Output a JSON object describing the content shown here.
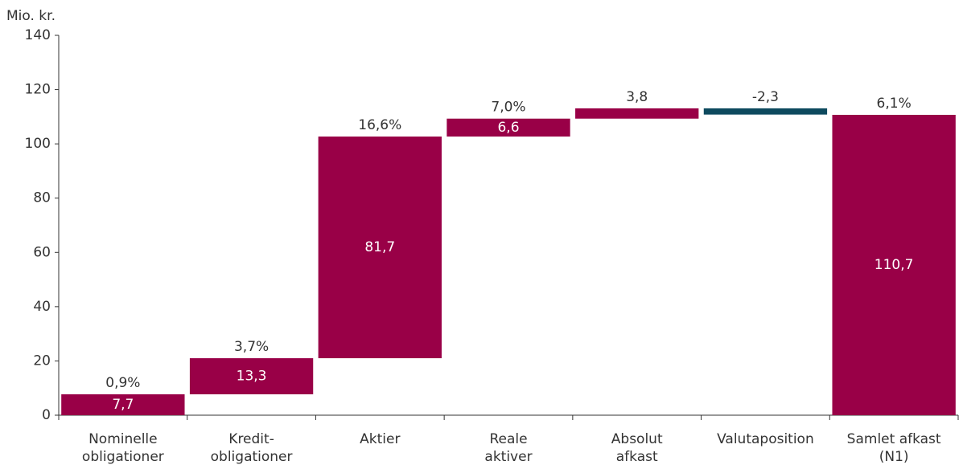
{
  "chart_data": {
    "type": "waterfall",
    "y_axis_label": "Mio. kr.",
    "categories": [
      "Nominelle\nobligationer",
      "Kredit-\nobligationer",
      "Aktier",
      "Reale\naktiver",
      "Absolut\nafkast",
      "Valutaposition",
      "Samlet afkast\n(N1)"
    ],
    "values": [
      7.7,
      13.3,
      81.7,
      6.6,
      3.8,
      -2.3,
      110.7
    ],
    "value_labels": [
      "7,7",
      "13,3",
      "81,7",
      "6,6",
      "3,8",
      "-2,3",
      "110,7"
    ],
    "measure": [
      "relative",
      "relative",
      "relative",
      "relative",
      "relative",
      "relative",
      "total"
    ],
    "annotations": [
      "0,9%",
      "3,7%",
      "16,6%",
      "7,0%",
      null,
      null,
      "6,1%"
    ],
    "colors": [
      "#990047",
      "#990047",
      "#990047",
      "#990047",
      "#990047",
      "#0d4a5e",
      "#990047"
    ],
    "ylim": [
      0,
      140
    ],
    "yticks": [
      0,
      20,
      40,
      60,
      80,
      100,
      120,
      140
    ]
  }
}
